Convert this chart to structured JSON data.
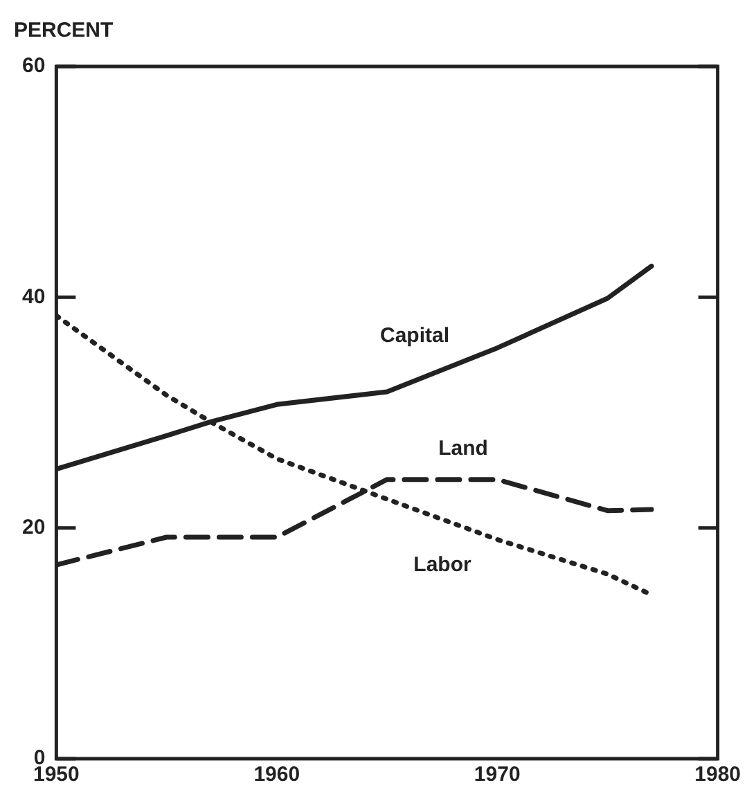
{
  "chart_data": {
    "type": "line",
    "ylabel": "PERCENT",
    "x": [
      1950,
      1955,
      1957,
      1960,
      1965,
      1970,
      1975,
      1977
    ],
    "xlim": [
      1950,
      1980
    ],
    "xticks": [
      1950,
      1960,
      1970,
      1980
    ],
    "ylim": [
      0,
      60
    ],
    "yticks": [
      0,
      20,
      40,
      60
    ],
    "grid": false,
    "legend": false,
    "marker": "none",
    "series": [
      {
        "name": "Capital",
        "color": "#222222",
        "line_style": "solid",
        "values": [
          25.1,
          28.0,
          29.2,
          30.7,
          31.8,
          35.6,
          39.9,
          42.7
        ]
      },
      {
        "name": "Land",
        "color": "#222222",
        "line_style": "dashed",
        "values": [
          16.8,
          19.2,
          19.2,
          19.2,
          24.2,
          24.2,
          21.5,
          21.6
        ]
      },
      {
        "name": "Labor",
        "color": "#222222",
        "line_style": "dotted",
        "values": [
          38.4,
          31.5,
          29.2,
          26.0,
          22.5,
          19.0,
          16.0,
          14.2
        ]
      }
    ]
  }
}
